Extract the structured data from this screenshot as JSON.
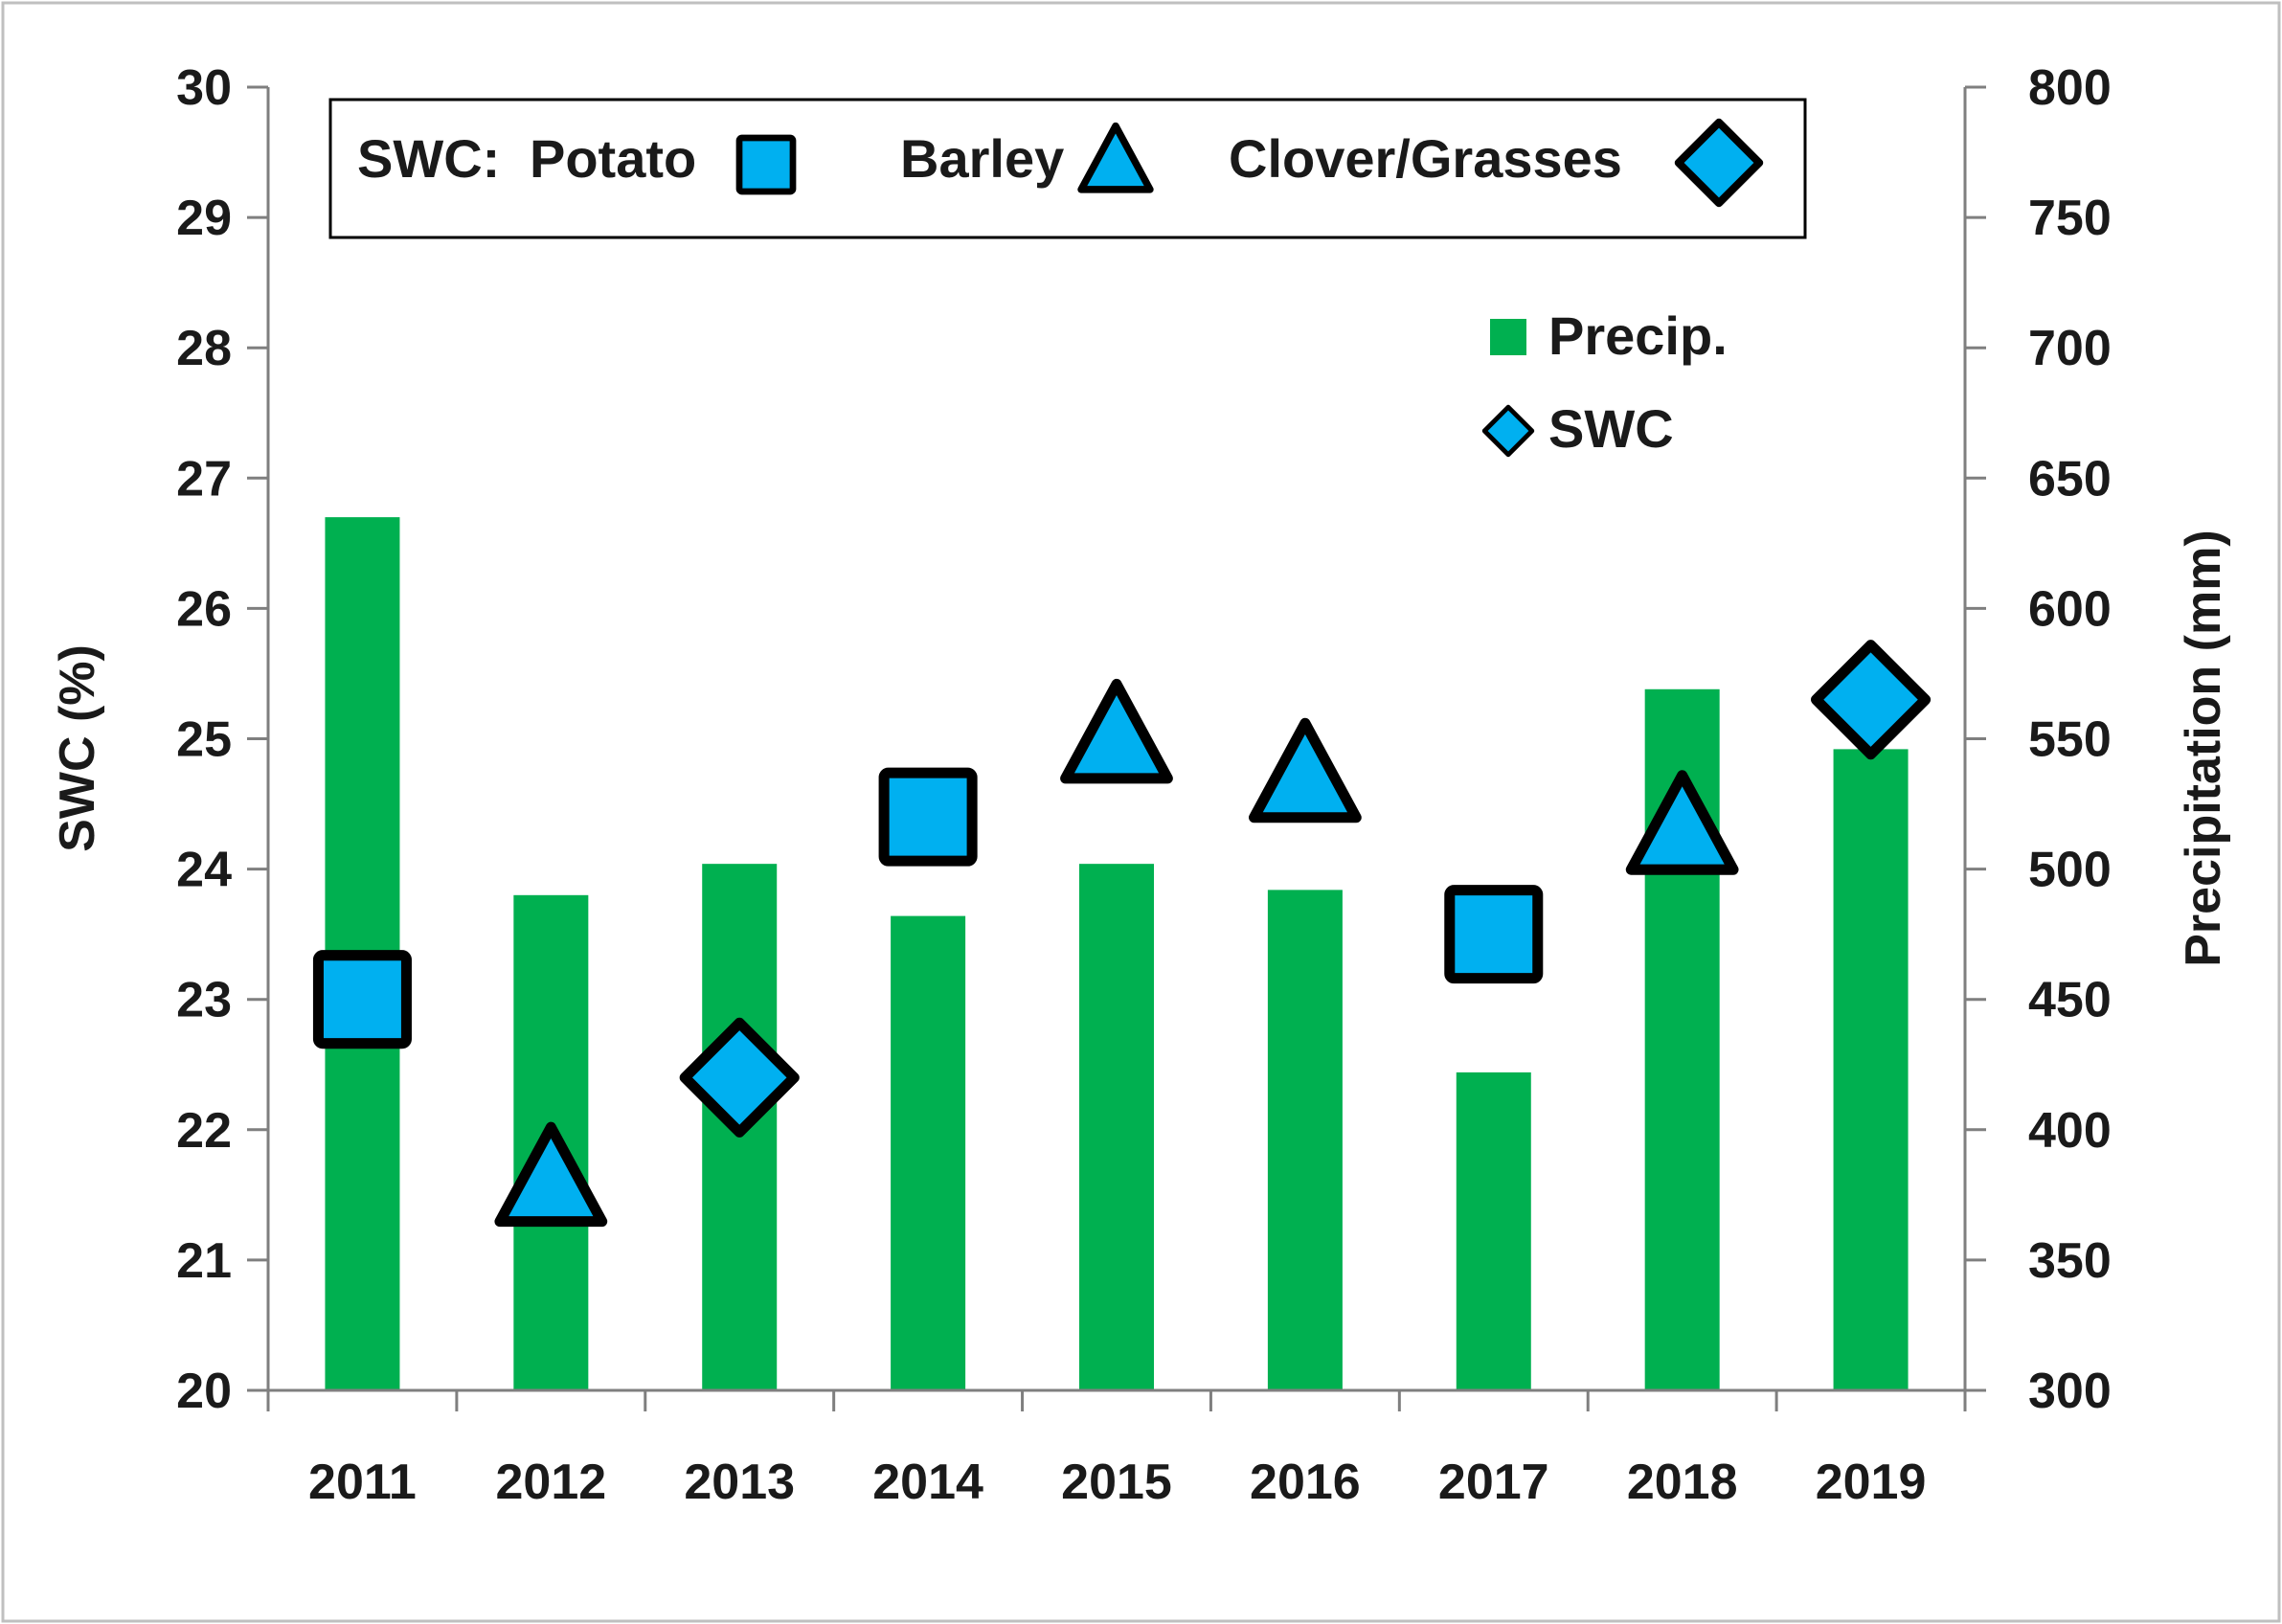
{
  "chart_data": {
    "type": "bar",
    "categories": [
      "2011",
      "2012",
      "2013",
      "2014",
      "2015",
      "2016",
      "2017",
      "2018",
      "2019"
    ],
    "series": [
      {
        "name": "Precip.",
        "axis": "right",
        "kind": "bar",
        "color": "#00b050",
        "values": [
          635,
          490,
          502,
          482,
          502,
          492,
          422,
          569,
          546
        ]
      },
      {
        "name": "SWC",
        "axis": "left",
        "kind": "marker",
        "color": "#00b0f0",
        "values": [
          23.0,
          21.6,
          22.4,
          24.4,
          25.0,
          24.7,
          23.5,
          24.3,
          25.3
        ],
        "markers": [
          "square",
          "triangle",
          "diamond",
          "square",
          "triangle",
          "triangle",
          "square",
          "triangle",
          "diamond"
        ]
      }
    ],
    "y_left": {
      "label": "SWC (%)",
      "lim": [
        20,
        30
      ],
      "ticks": [
        "20",
        "21",
        "22",
        "23",
        "24",
        "25",
        "26",
        "27",
        "28",
        "29",
        "30"
      ]
    },
    "y_right": {
      "label": "Precipitation (mm)",
      "lim": [
        300,
        800
      ],
      "ticks": [
        "300",
        "350",
        "400",
        "450",
        "500",
        "550",
        "600",
        "650",
        "700",
        "750",
        "800"
      ]
    },
    "legend_box": {
      "prefix": "SWC:",
      "items": [
        {
          "label": "Potato",
          "marker": "square"
        },
        {
          "label": "Barley",
          "marker": "triangle"
        },
        {
          "label": "Clover/Grasses",
          "marker": "diamond"
        }
      ]
    },
    "legend_series": [
      {
        "label": "Precip.",
        "marker": "bar"
      },
      {
        "label": "SWC",
        "marker": "diamond"
      }
    ],
    "grid": false
  },
  "colors": {
    "bar": "#00b050",
    "marker_fill": "#00b0f0",
    "marker_stroke": "#000000",
    "axis": "#7f7f7f"
  }
}
